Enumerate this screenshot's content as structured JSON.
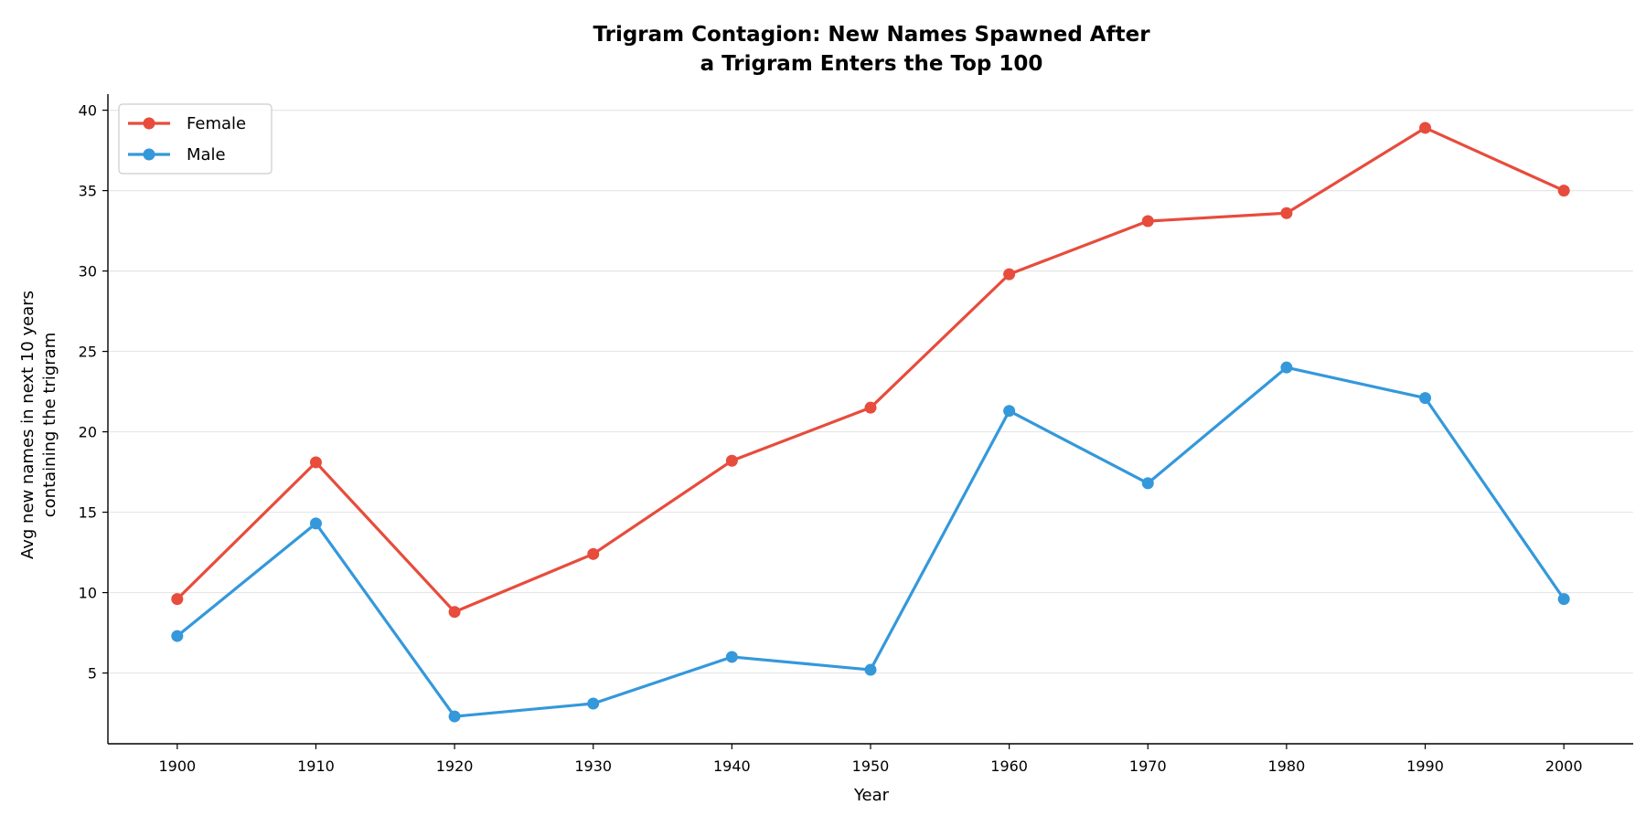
{
  "chart_data": {
    "type": "line",
    "title": [
      "Trigram Contagion: New Names Spawned After",
      "a Trigram Enters the Top 100"
    ],
    "xlabel": "Year",
    "ylabel": [
      "Avg new names in next 10 years",
      "containing the trigram"
    ],
    "x": [
      1900,
      1910,
      1920,
      1930,
      1940,
      1950,
      1960,
      1970,
      1980,
      1990,
      2000
    ],
    "x_ticks": [
      "1900",
      "1910",
      "1920",
      "1930",
      "1940",
      "1950",
      "1960",
      "1970",
      "1980",
      "1990",
      "2000"
    ],
    "xlim": [
      1895,
      2005
    ],
    "ylim": [
      0.6,
      41.0
    ],
    "y_ticks": [
      5,
      10,
      15,
      20,
      25,
      30,
      35,
      40
    ],
    "y_tick_labels": [
      "5",
      "10",
      "15",
      "20",
      "25",
      "30",
      "35",
      "40"
    ],
    "grid": "horizontal",
    "legend_position": "top-left",
    "series": [
      {
        "name": "Female",
        "color": "#e74c3c",
        "values": [
          9.6,
          18.1,
          8.8,
          12.4,
          18.2,
          21.5,
          29.8,
          33.1,
          33.6,
          38.9,
          35.0
        ]
      },
      {
        "name": "Male",
        "color": "#3498db",
        "values": [
          7.3,
          14.3,
          2.3,
          3.1,
          6.0,
          5.2,
          21.3,
          16.8,
          24.0,
          22.1,
          9.6
        ]
      }
    ]
  }
}
